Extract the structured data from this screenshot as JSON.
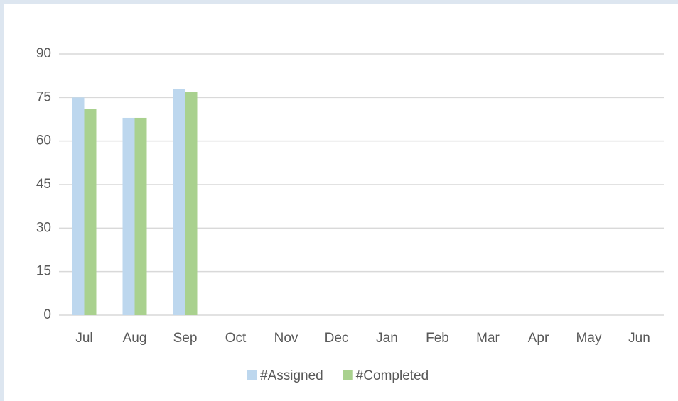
{
  "chart_data": {
    "type": "bar",
    "categories": [
      "Jul",
      "Aug",
      "Sep",
      "Oct",
      "Nov",
      "Dec",
      "Jan",
      "Feb",
      "Mar",
      "Apr",
      "May",
      "Jun"
    ],
    "series": [
      {
        "name": "#Assigned",
        "color": "#bdd7ee",
        "values": [
          75,
          68,
          78,
          null,
          null,
          null,
          null,
          null,
          null,
          null,
          null,
          null
        ]
      },
      {
        "name": "#Completed",
        "color": "#a9d18e",
        "values": [
          71,
          68,
          77,
          null,
          null,
          null,
          null,
          null,
          null,
          null,
          null,
          null
        ]
      }
    ],
    "ylim": [
      0,
      90
    ],
    "yticks": [
      0,
      15,
      30,
      45,
      60,
      75,
      90
    ],
    "grid": true,
    "legend": "bottom"
  }
}
